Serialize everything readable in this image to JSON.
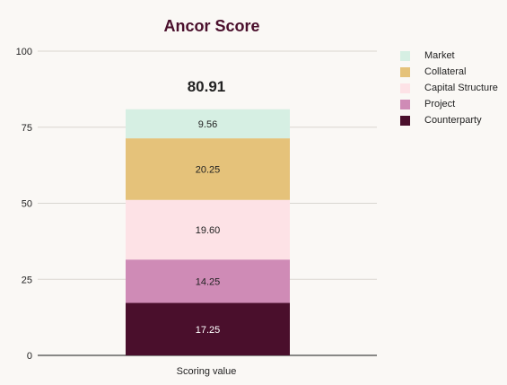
{
  "chart_data": {
    "type": "bar",
    "stacked": true,
    "title": "Ancor Score",
    "total_label": "80.91",
    "categories": [
      "Scoring value"
    ],
    "series": [
      {
        "name": "Counterparty",
        "values": [
          17.25
        ],
        "label": "17.25",
        "color": "#4a0f2c",
        "text_color": "#ffffff"
      },
      {
        "name": "Project",
        "values": [
          14.25
        ],
        "label": "14.25",
        "color": "#cf8bb6",
        "text_color": "#222222"
      },
      {
        "name": "Capital Structure",
        "values": [
          19.6
        ],
        "label": "19.60",
        "color": "#fde2e6",
        "text_color": "#222222"
      },
      {
        "name": "Collateral",
        "values": [
          20.25
        ],
        "label": "20.25",
        "color": "#e5c27a",
        "text_color": "#222222"
      },
      {
        "name": "Market",
        "values": [
          9.56
        ],
        "label": "9.56",
        "color": "#d6efe3",
        "text_color": "#222222"
      }
    ],
    "yticks": [
      "0",
      "25",
      "50",
      "75",
      "100"
    ],
    "ylim": [
      0,
      100
    ],
    "grid": true,
    "legend_position": "right",
    "legend_order": [
      "Market",
      "Collateral",
      "Capital Structure",
      "Project",
      "Counterparty"
    ],
    "colors": {
      "title": "#4a0f2c",
      "grid": "#d9d6d0",
      "axis": "#444444"
    }
  }
}
